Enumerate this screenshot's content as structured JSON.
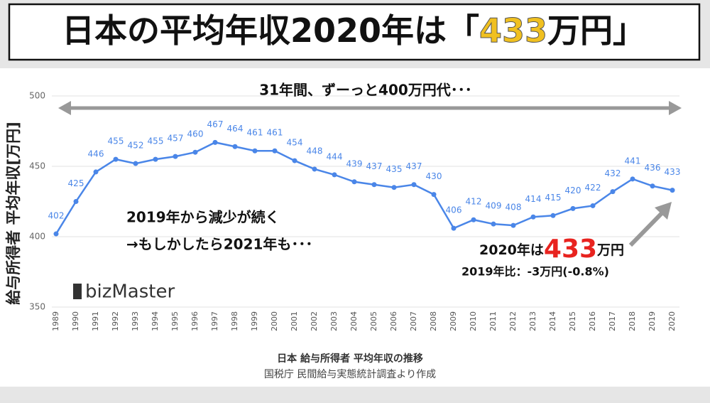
{
  "chart_data": {
    "type": "line",
    "title": "日本の平均年収2020年は「",
    "title_highlight": "433",
    "title_end": "万円」",
    "ylabel": "給与所得者 平均年収[万円]",
    "categories": [
      "1989",
      "1990",
      "1991",
      "1992",
      "1993",
      "1994",
      "1995",
      "1996",
      "1997",
      "1998",
      "1999",
      "2000",
      "2001",
      "2002",
      "2003",
      "2004",
      "2005",
      "2006",
      "2007",
      "2008",
      "2009",
      "2010",
      "2011",
      "2012",
      "2013",
      "2014",
      "2015",
      "2016",
      "2017",
      "2018",
      "2019",
      "2020"
    ],
    "values": [
      402,
      425,
      446,
      455,
      452,
      455,
      457,
      460,
      467,
      464,
      461,
      461,
      454,
      448,
      444,
      439,
      437,
      435,
      437,
      430,
      406,
      412,
      409,
      408,
      414,
      415,
      420,
      422,
      432,
      441,
      436,
      433
    ],
    "color": "#4a86e8",
    "ylim": [
      350,
      500
    ],
    "yticks": [
      350,
      400,
      450,
      500
    ],
    "grid": true,
    "annotations": {
      "span": "31年間、ずーっと400万円代･･･",
      "trend1": "2019年から減少が続く",
      "trend2": "→もしかしたら2021年も･･･",
      "latest_pre": "2020年は",
      "latest_value": "433",
      "latest_post": "万円",
      "change": "2019年比：-3万円(-0.8%)",
      "brand": "bizMaster"
    },
    "caption": "日本 給与所得者 平均年収の推移",
    "source": "国税庁 民間給与実態統計調査より作成"
  }
}
